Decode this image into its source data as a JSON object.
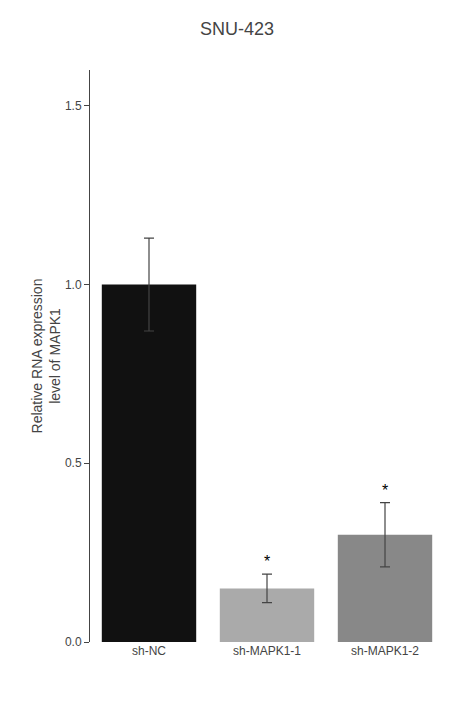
{
  "chart_data": {
    "type": "bar",
    "title": "SNU-423",
    "categories": [
      "sh-NC",
      "sh-MAPK1-1",
      "sh-MAPK1-2"
    ],
    "values": [
      1.0,
      0.15,
      0.3
    ],
    "errors": [
      0.13,
      0.04,
      0.09
    ],
    "colors": [
      "#111111",
      "#aaaaaa",
      "#888888"
    ],
    "ylabel": "Relative RNA expression\nlevel of MAPK1",
    "ylim": [
      0,
      1.6
    ],
    "yticks": [
      {
        "value": 0.0,
        "label": "0.0"
      },
      0.5,
      {
        "value": 1.0,
        "label": "1.0"
      },
      1.5
    ],
    "annotations": [
      {
        "category": "sh-MAPK1-1",
        "text": "*"
      },
      {
        "category": "sh-MAPK1-2",
        "text": "*"
      }
    ],
    "grid": false
  }
}
